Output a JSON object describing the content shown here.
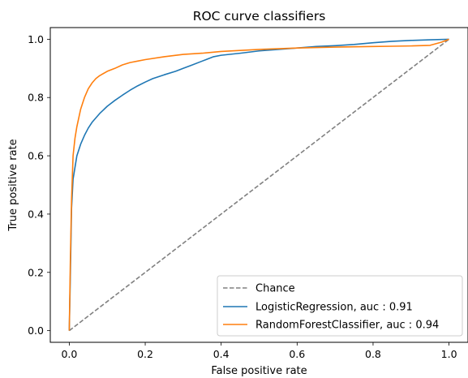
{
  "chart_data": {
    "type": "line",
    "title": "ROC curve classifiers",
    "xlabel": "False positive rate",
    "ylabel": "True positive rate",
    "xlim": [
      -0.05,
      1.05
    ],
    "ylim": [
      -0.04,
      1.04
    ],
    "x_ticks": [
      0.0,
      0.2,
      0.4,
      0.6,
      0.8,
      1.0
    ],
    "y_ticks": [
      0.0,
      0.2,
      0.4,
      0.6,
      0.8,
      1.0
    ],
    "x_tick_labels": [
      "0.0",
      "0.2",
      "0.4",
      "0.6",
      "0.8",
      "1.0"
    ],
    "y_tick_labels": [
      "0.0",
      "0.2",
      "0.4",
      "0.6",
      "0.8",
      "1.0"
    ],
    "grid": false,
    "legend_position": "lower-right",
    "series": [
      {
        "name": "Chance",
        "color": "#808080",
        "dash": true,
        "x": [
          0.0,
          1.0
        ],
        "y": [
          0.0,
          1.0
        ]
      },
      {
        "name": "LogisticRegression, auc : 0.91",
        "color": "#1f77b4",
        "dash": false,
        "x": [
          0.0,
          0.003,
          0.006,
          0.01,
          0.015,
          0.02,
          0.03,
          0.04,
          0.05,
          0.06,
          0.08,
          0.1,
          0.12,
          0.14,
          0.16,
          0.18,
          0.2,
          0.22,
          0.25,
          0.28,
          0.3,
          0.32,
          0.35,
          0.38,
          0.4,
          0.45,
          0.5,
          0.55,
          0.6,
          0.65,
          0.7,
          0.75,
          0.8,
          0.85,
          0.9,
          0.95,
          1.0
        ],
        "y": [
          0.0,
          0.2,
          0.42,
          0.52,
          0.56,
          0.6,
          0.64,
          0.67,
          0.695,
          0.715,
          0.745,
          0.77,
          0.79,
          0.808,
          0.825,
          0.84,
          0.853,
          0.865,
          0.878,
          0.89,
          0.9,
          0.91,
          0.925,
          0.94,
          0.945,
          0.952,
          0.96,
          0.965,
          0.97,
          0.975,
          0.978,
          0.982,
          0.988,
          0.993,
          0.996,
          0.998,
          1.0
        ]
      },
      {
        "name": "RandomForestClassifier, auc : 0.94",
        "color": "#ff7f0e",
        "dash": false,
        "x": [
          0.0,
          0.003,
          0.006,
          0.01,
          0.015,
          0.02,
          0.03,
          0.04,
          0.05,
          0.06,
          0.07,
          0.08,
          0.1,
          0.12,
          0.14,
          0.16,
          0.18,
          0.2,
          0.25,
          0.3,
          0.35,
          0.4,
          0.5,
          0.6,
          0.7,
          0.8,
          0.85,
          0.9,
          0.95,
          0.98,
          1.0
        ],
        "y": [
          0.0,
          0.25,
          0.45,
          0.6,
          0.66,
          0.7,
          0.76,
          0.8,
          0.83,
          0.85,
          0.865,
          0.875,
          0.89,
          0.9,
          0.912,
          0.92,
          0.925,
          0.93,
          0.94,
          0.948,
          0.952,
          0.958,
          0.965,
          0.97,
          0.973,
          0.975,
          0.976,
          0.977,
          0.979,
          0.99,
          1.0
        ]
      }
    ]
  }
}
